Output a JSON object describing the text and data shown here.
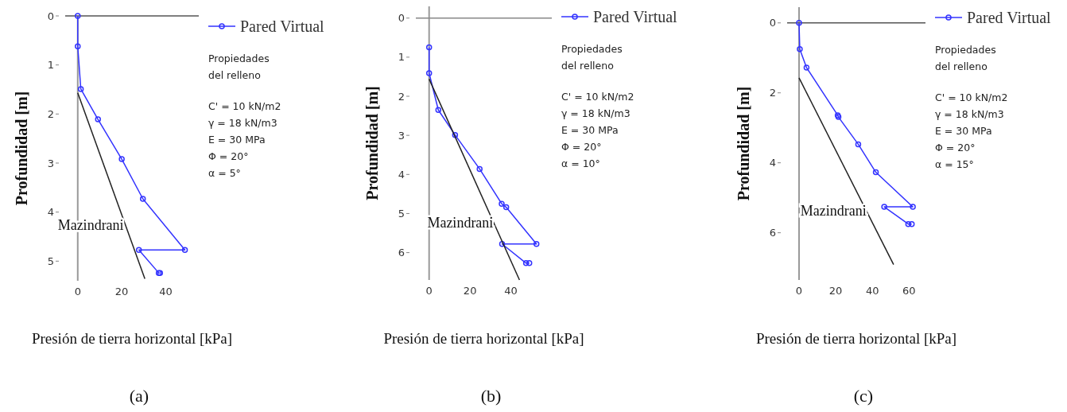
{
  "chart_data": [
    {
      "type": "line",
      "title": "(a)",
      "xlabel": "Presión de tierra horizontal [kPa]",
      "ylabel": "Profundidad [m]",
      "xlim": [
        -5.7,
        55
      ],
      "ylim": [
        5.4,
        0
      ],
      "xticks": [
        0,
        20,
        40
      ],
      "yticks": [
        0,
        1,
        2,
        3,
        4,
        5
      ],
      "legend": "top right",
      "ref_lines": [
        {
          "axis": "y",
          "value": 0,
          "color": "#555555"
        }
      ],
      "annotations": [
        "Propiedades",
        "del relleno",
        "C' = 10 kN/m2",
        "γ = 18 kN/m3",
        "E = 30 MPa",
        "Φ = 20°",
        "α = 5°"
      ],
      "series": [
        {
          "name": "Pared Virtual",
          "color": "#3333ff",
          "marker": "circle",
          "x": [
            0,
            0,
            1.4,
            9.2,
            20,
            29.6,
            48.7,
            27.8,
            36.8,
            37.4
          ],
          "values": [
            0,
            0.62,
            1.49,
            2.11,
            2.92,
            3.73,
            4.77,
            4.77,
            5.24,
            5.24
          ]
        },
        {
          "name": "Mazindrani",
          "color": "#222222",
          "marker": "none",
          "x": [
            0,
            30.5
          ],
          "values": [
            1.57,
            5.36
          ]
        }
      ]
    },
    {
      "type": "line",
      "title": "(b)",
      "xlabel": "Presión de tierra horizontal [kPa]",
      "ylabel": "Profundidad [m]",
      "xlim": [
        -6.5,
        60
      ],
      "ylim": [
        6.7,
        -0.3
      ],
      "xticks": [
        0,
        20,
        40
      ],
      "yticks": [
        0,
        1,
        2,
        3,
        4,
        5,
        6
      ],
      "legend": "top right",
      "ref_lines": [
        {
          "axis": "y",
          "value": 0,
          "color": "#888888"
        }
      ],
      "annotations": [
        "Propiedades",
        "del relleno",
        "C' = 10 kN/m2",
        "γ = 18 kN/m3",
        "E = 30 MPa",
        "Φ = 20°",
        "α = 10°"
      ],
      "series": [
        {
          "name": "Pared Virtual",
          "color": "#3333ff",
          "marker": "circle",
          "x": [
            0,
            0,
            4.5,
            12.7,
            24.7,
            35.5,
            37.7,
            52.5,
            35.7,
            47.4,
            49
          ],
          "values": [
            0.75,
            1.41,
            2.35,
            2.99,
            3.86,
            4.75,
            4.84,
            5.78,
            5.78,
            6.27,
            6.27
          ]
        },
        {
          "name": "Mazindrani",
          "color": "#222222",
          "marker": "none",
          "x": [
            0,
            44.2
          ],
          "values": [
            1.56,
            6.7
          ]
        }
      ]
    },
    {
      "type": "line",
      "title": "(c)",
      "xlabel": "Presión de tierra horizontal [kPa]",
      "ylabel": "Profundidad [m]",
      "xlim": [
        -6.5,
        69
      ],
      "ylim": [
        7.35,
        -0.45
      ],
      "xticks": [
        0,
        20,
        40,
        60
      ],
      "yticks": [
        0,
        2,
        4,
        6
      ],
      "legend": "top right",
      "ref_lines": [
        {
          "axis": "y",
          "value": 0,
          "color": "#555555"
        }
      ],
      "annotations": [
        "Propiedades",
        "del relleno",
        "C' = 10 kN/m2",
        "γ = 18 kN/m3",
        "E = 30 MPa",
        "Φ = 20°",
        "α = 15°"
      ],
      "series": [
        {
          "name": "Pared Virtual",
          "color": "#3333ff",
          "marker": "circle",
          "x": [
            0,
            0.4,
            4.1,
            21.1,
            21.5,
            32.3,
            41.9,
            62.1,
            46.5,
            59.6,
            61.5
          ],
          "values": [
            0,
            0.75,
            1.28,
            2.64,
            2.69,
            3.47,
            4.27,
            5.26,
            5.26,
            5.75,
            5.75
          ]
        },
        {
          "name": "Mazindrani",
          "color": "#222222",
          "marker": "none",
          "x": [
            0,
            51.6
          ],
          "values": [
            1.57,
            6.91
          ]
        }
      ]
    }
  ]
}
